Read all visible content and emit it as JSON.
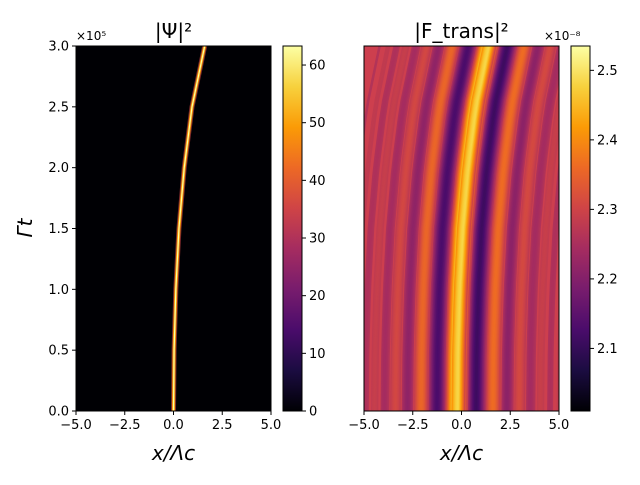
{
  "chart_data": [
    {
      "type": "heatmap",
      "title": "|Ψ|²",
      "xlabel": "x/Λc",
      "ylabel": "Γt",
      "xlim": [
        -5,
        5
      ],
      "ylim": [
        0,
        300000
      ],
      "x_ticks": [
        "−5.0",
        "−2.5",
        "0.0",
        "2.5",
        "5.0"
      ],
      "y_ticks": [
        "0.0",
        "0.5",
        "1.0",
        "1.5",
        "2.0",
        "2.5",
        "3.0"
      ],
      "y_multiplier": "×10⁵",
      "colormap": "inferno",
      "colorbar": {
        "min": 0,
        "max": 63.3,
        "ticks": [
          "0",
          "10",
          "20",
          "30",
          "40",
          "50",
          "60"
        ]
      },
      "ridge": {
        "description": "narrow bright trajectory",
        "points": [
          {
            "t": 0,
            "x": 0.0
          },
          {
            "t": 50000,
            "x": 0.03
          },
          {
            "t": 100000,
            "x": 0.12
          },
          {
            "t": 150000,
            "x": 0.28
          },
          {
            "t": 200000,
            "x": 0.55
          },
          {
            "t": 250000,
            "x": 0.95
          },
          {
            "t": 300000,
            "x": 1.6
          }
        ],
        "peak_value": 63
      }
    },
    {
      "type": "heatmap",
      "title": "|F_trans|²",
      "xlabel": "x/Λc",
      "xlim": [
        -5,
        5
      ],
      "ylim": [
        0,
        300000
      ],
      "x_ticks": [
        "−5.0",
        "−2.5",
        "0.0",
        "2.5",
        "5.0"
      ],
      "colormap": "inferno",
      "colorbar": {
        "min": 2.01e-08,
        "max": 2.535e-08,
        "ticks": [
          "2.1",
          "2.2",
          "2.3",
          "2.4",
          "2.5"
        ],
        "multiplier": "×10⁻⁸"
      },
      "background_value": 2.27e-08,
      "fringe_pattern": "oscillatory fringes tilting right with time"
    }
  ],
  "colors": {
    "inferno": [
      "#000004",
      "#1b0c41",
      "#4a0c6b",
      "#781c6d",
      "#a52c60",
      "#cf4446",
      "#ed6925",
      "#fb9b06",
      "#f7d13d",
      "#fcffa4"
    ]
  }
}
